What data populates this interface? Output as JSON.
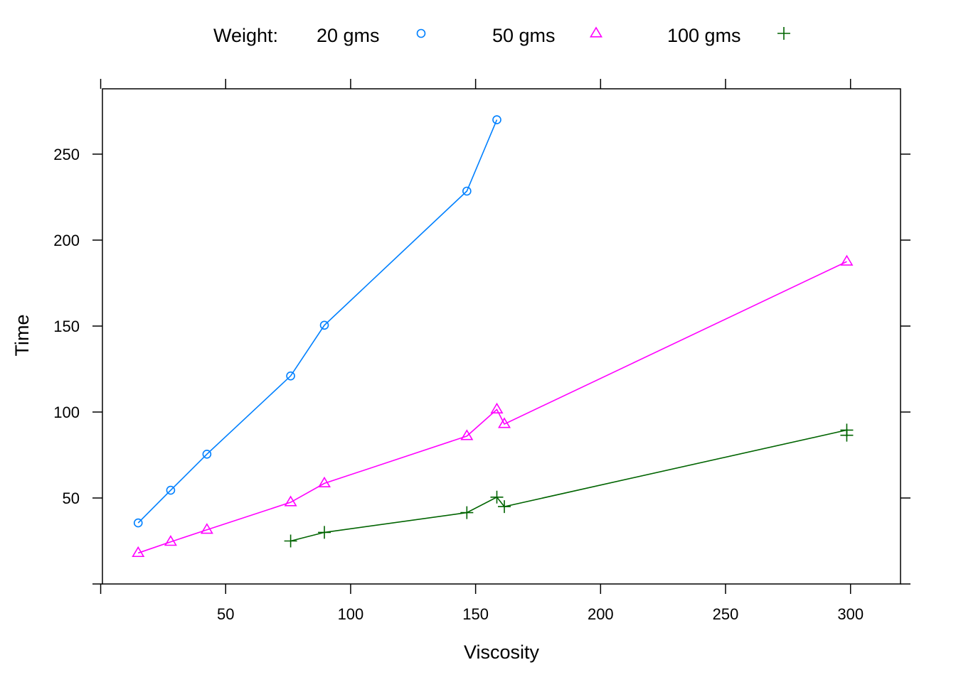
{
  "chart_data": {
    "type": "line",
    "title": "",
    "xlabel": "Viscosity",
    "ylabel": "Time",
    "xlim": [
      0.7,
      320
    ],
    "ylim": [
      0,
      288
    ],
    "xticks": [
      50,
      100,
      150,
      200,
      250,
      300
    ],
    "yticks": [
      50,
      100,
      150,
      200,
      250
    ],
    "grid": false,
    "legend": {
      "position": "top",
      "title": "Weight:",
      "labels": [
        "20 gms",
        "50 gms",
        "100 gms"
      ]
    },
    "series": [
      {
        "name": "20 gms",
        "color": "#0080ff",
        "marker": "circle",
        "x": [
          15.0,
          28.0,
          42.5,
          76.0,
          89.5,
          146.5,
          158.5
        ],
        "y": [
          35.5,
          54.5,
          75.5,
          121.0,
          150.5,
          228.5,
          270.0
        ]
      },
      {
        "name": "50 gms",
        "color": "#ff00ff",
        "marker": "triangle",
        "x": [
          15.0,
          28.0,
          42.5,
          76.0,
          89.5,
          146.5,
          158.5,
          161.5,
          298.5
        ],
        "y": [
          18.0,
          24.5,
          31.5,
          47.5,
          58.5,
          86.0,
          101.5,
          93.0,
          187.5
        ]
      },
      {
        "name": "100 gms",
        "color": "#006400",
        "marker": "plus",
        "x": [
          76.0,
          89.5,
          146.5,
          158.5,
          161.5,
          298.5,
          298.5
        ],
        "y": [
          25.0,
          30.0,
          41.5,
          50.5,
          45.0,
          89.5,
          86.5
        ]
      }
    ]
  }
}
